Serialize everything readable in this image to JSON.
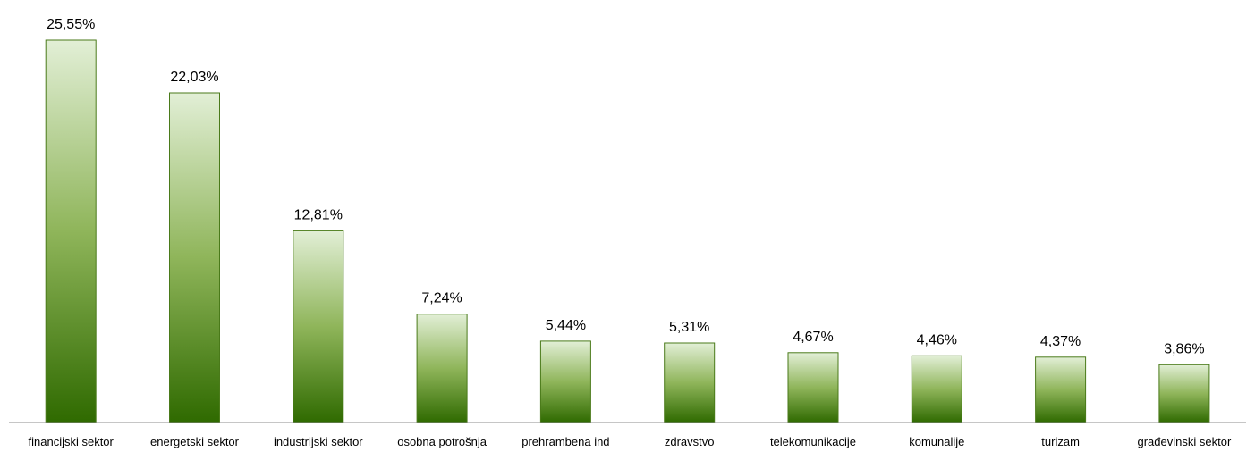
{
  "chart_data": {
    "type": "bar",
    "title": "",
    "xlabel": "",
    "ylabel": "",
    "categories": [
      "financijski sektor",
      "energetski sektor",
      "industrijski sektor",
      "osobna potrošnja",
      "prehrambena ind",
      "zdravstvo",
      "telekomunikacije",
      "komunalije",
      "turizam",
      "građevinski sektor"
    ],
    "values": [
      25.55,
      22.03,
      12.81,
      7.24,
      5.44,
      5.31,
      4.67,
      4.46,
      4.37,
      3.86
    ],
    "value_labels": [
      "25,55%",
      "22,03%",
      "12,81%",
      "7,24%",
      "5,44%",
      "5,31%",
      "4,67%",
      "4,46%",
      "4,37%",
      "3,86%"
    ],
    "ylim": [
      0,
      25.55
    ],
    "grid": false,
    "legend": "none",
    "colors": {
      "bar_top": "#e2efd6",
      "bar_mid": "#8fb55a",
      "bar_bottom": "#2f6a00",
      "bar_border": "#4a7a1a",
      "axis": "#8c8c8c"
    }
  }
}
